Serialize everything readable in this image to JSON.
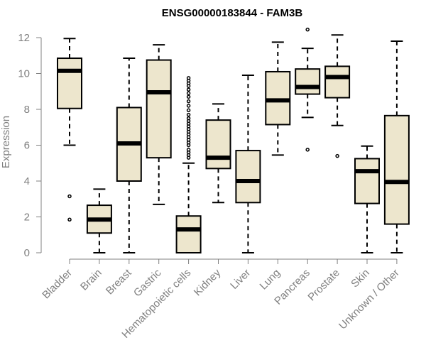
{
  "chart_data": {
    "type": "box",
    "title": "ENSG00000183844 - FAM3B",
    "xlabel": "",
    "ylabel": "Expression",
    "ylim": [
      0,
      12
    ],
    "yticks": [
      0,
      2,
      4,
      6,
      8,
      10,
      12
    ],
    "colors": {
      "box_fill": "#ede6cd",
      "stroke": "#000000",
      "axis": "#808080",
      "label": "#808080"
    },
    "categories": [
      "Bladder",
      "Brain",
      "Breast",
      "Gastric",
      "Hematopoietic cells",
      "Kidney",
      "Liver",
      "Lung",
      "Pancreas",
      "Prostate",
      "Skin",
      "Unknown / Other"
    ],
    "boxes": [
      {
        "min": 6.0,
        "q1": 8.05,
        "median": 10.15,
        "q3": 10.85,
        "max": 11.95,
        "outliers": [
          3.15,
          1.85
        ]
      },
      {
        "min": 0.0,
        "q1": 1.1,
        "median": 1.85,
        "q3": 2.65,
        "max": 3.55,
        "outliers": []
      },
      {
        "min": 0.0,
        "q1": 4.0,
        "median": 6.1,
        "q3": 8.1,
        "max": 10.85,
        "outliers": []
      },
      {
        "min": 2.7,
        "q1": 5.3,
        "median": 8.95,
        "q3": 10.75,
        "max": 11.6,
        "outliers": []
      },
      {
        "min": 0.0,
        "q1": 0.0,
        "median": 1.3,
        "q3": 2.05,
        "max": 5.0,
        "outliers": [
          5.3,
          5.45,
          5.6,
          5.75,
          6.0,
          6.15,
          6.3,
          6.45,
          6.6,
          6.75,
          6.9,
          7.05,
          7.2,
          7.35,
          7.5,
          7.7,
          7.95,
          8.2,
          8.45,
          8.7,
          8.9,
          9.1,
          9.3,
          9.45,
          9.6,
          9.75
        ]
      },
      {
        "min": 2.8,
        "q1": 4.7,
        "median": 5.3,
        "q3": 7.4,
        "max": 8.3,
        "outliers": []
      },
      {
        "min": 0.0,
        "q1": 2.8,
        "median": 4.0,
        "q3": 5.7,
        "max": 9.9,
        "outliers": []
      },
      {
        "min": 5.45,
        "q1": 7.15,
        "median": 8.5,
        "q3": 10.1,
        "max": 11.75,
        "outliers": []
      },
      {
        "min": 7.55,
        "q1": 8.85,
        "median": 9.25,
        "q3": 10.25,
        "max": 11.4,
        "outliers": [
          12.45,
          5.75
        ]
      },
      {
        "min": 7.1,
        "q1": 8.65,
        "median": 9.8,
        "q3": 10.4,
        "max": 12.15,
        "outliers": [
          5.4
        ]
      },
      {
        "min": 0.0,
        "q1": 2.75,
        "median": 4.55,
        "q3": 5.25,
        "max": 5.95,
        "outliers": []
      },
      {
        "min": 0.0,
        "q1": 1.6,
        "median": 3.95,
        "q3": 7.65,
        "max": 11.8,
        "outliers": []
      }
    ]
  }
}
